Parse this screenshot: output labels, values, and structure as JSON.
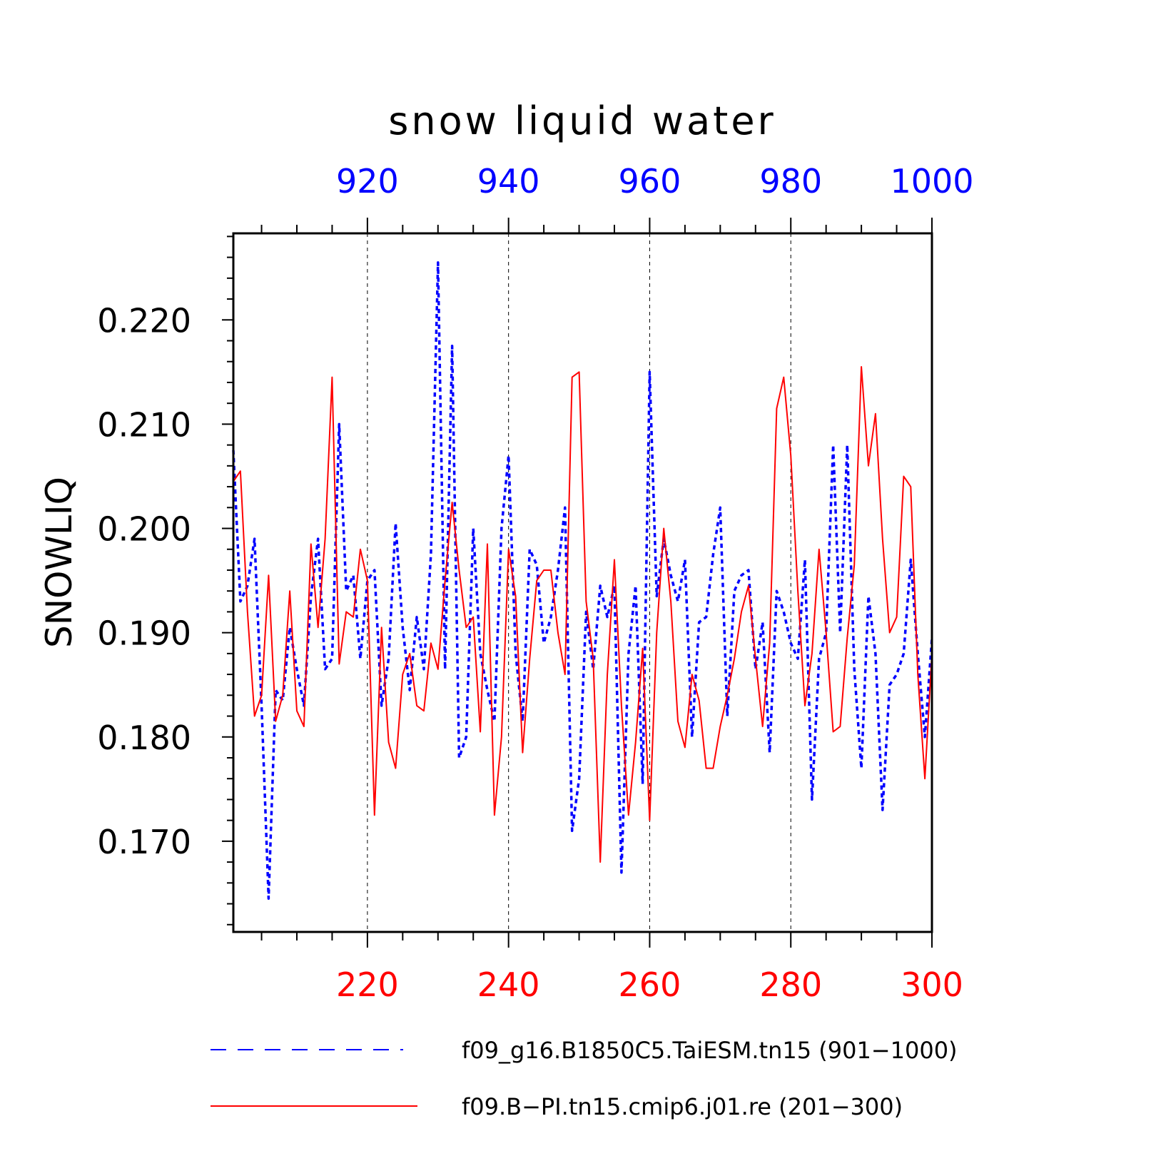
{
  "chart_data": {
    "type": "line",
    "title": "snow liquid water",
    "ylabel": "SNOWLIQ",
    "ylim": [
      0.1613,
      0.2283
    ],
    "yticks": [
      0.17,
      0.18,
      0.19,
      0.2,
      0.21,
      0.22
    ],
    "ytick_labels": [
      "0.170",
      "0.180",
      "0.190",
      "0.200",
      "0.210",
      "0.220"
    ],
    "x_bottom": {
      "range": [
        201,
        300
      ],
      "ticks": [
        220,
        240,
        260,
        280,
        300
      ],
      "labels": [
        "220",
        "240",
        "260",
        "280",
        "300"
      ],
      "color": "#ff0000"
    },
    "x_top": {
      "range": [
        901,
        1000
      ],
      "ticks": [
        920,
        940,
        960,
        980,
        1000
      ],
      "labels": [
        "920",
        "940",
        "960",
        "980",
        "1000"
      ],
      "color": "#0000ff"
    },
    "grid": "vertical dashed at major x ticks",
    "legend_placement": "bottom",
    "series": [
      {
        "name": "f09_g16.B1850C5.TaiESM.tn15 (901−1000)",
        "color": "#0000ff",
        "style": "dashed",
        "axis": "top",
        "x_start": 901,
        "values": [
          0.2075,
          0.193,
          0.1945,
          0.199,
          0.183,
          0.1645,
          0.1845,
          0.1835,
          0.1905,
          0.1865,
          0.183,
          0.1935,
          0.199,
          0.1865,
          0.1875,
          0.21,
          0.194,
          0.1955,
          0.1875,
          0.195,
          0.196,
          0.183,
          0.1875,
          0.2005,
          0.1905,
          0.1845,
          0.1915,
          0.1865,
          0.1975,
          0.2255,
          0.1865,
          0.2175,
          0.178,
          0.18,
          0.2,
          0.188,
          0.1845,
          0.1815,
          0.2,
          0.207,
          0.188,
          0.1815,
          0.198,
          0.1965,
          0.189,
          0.1915,
          0.196,
          0.202,
          0.171,
          0.176,
          0.192,
          0.1865,
          0.1945,
          0.1915,
          0.1945,
          0.167,
          0.188,
          0.1945,
          0.1755,
          0.215,
          0.1935,
          0.199,
          0.1955,
          0.193,
          0.197,
          0.18,
          0.191,
          0.1915,
          0.1975,
          0.202,
          0.182,
          0.194,
          0.1955,
          0.196,
          0.1865,
          0.191,
          0.1785,
          0.194,
          0.192,
          0.189,
          0.1875,
          0.197,
          0.174,
          0.1875,
          0.19,
          0.208,
          0.19,
          0.208,
          0.1865,
          0.177,
          0.1935,
          0.188,
          0.173,
          0.185,
          0.186,
          0.188,
          0.197,
          0.188,
          0.18,
          0.1895
        ]
      },
      {
        "name": "f09.B−PI.tn15.cmip6.j01.re (201−300)",
        "color": "#ff0000",
        "style": "solid",
        "axis": "bottom",
        "x_start": 201,
        "values": [
          0.2045,
          0.2055,
          0.192,
          0.182,
          0.184,
          0.1955,
          0.1815,
          0.184,
          0.194,
          0.1825,
          0.181,
          0.1985,
          0.1905,
          0.199,
          0.2145,
          0.187,
          0.192,
          0.1915,
          0.198,
          0.195,
          0.1725,
          0.1905,
          0.1795,
          0.177,
          0.186,
          0.188,
          0.183,
          0.1825,
          0.189,
          0.1865,
          0.195,
          0.2025,
          0.196,
          0.1905,
          0.1915,
          0.1805,
          0.1985,
          0.1725,
          0.18,
          0.198,
          0.1935,
          0.1785,
          0.1875,
          0.195,
          0.196,
          0.196,
          0.19,
          0.186,
          0.2145,
          0.215,
          0.193,
          0.1875,
          0.168,
          0.186,
          0.197,
          0.183,
          0.1725,
          0.1795,
          0.1885,
          0.172,
          0.19,
          0.2,
          0.193,
          0.1815,
          0.179,
          0.186,
          0.1835,
          0.177,
          0.177,
          0.181,
          0.184,
          0.1875,
          0.192,
          0.1945,
          0.1875,
          0.181,
          0.189,
          0.2115,
          0.2145,
          0.207,
          0.194,
          0.183,
          0.188,
          0.198,
          0.19,
          0.1805,
          0.181,
          0.1895,
          0.1965,
          0.2155,
          0.206,
          0.211,
          0.199,
          0.19,
          0.1915,
          0.205,
          0.204,
          0.186,
          0.176,
          0.188
        ]
      }
    ]
  }
}
